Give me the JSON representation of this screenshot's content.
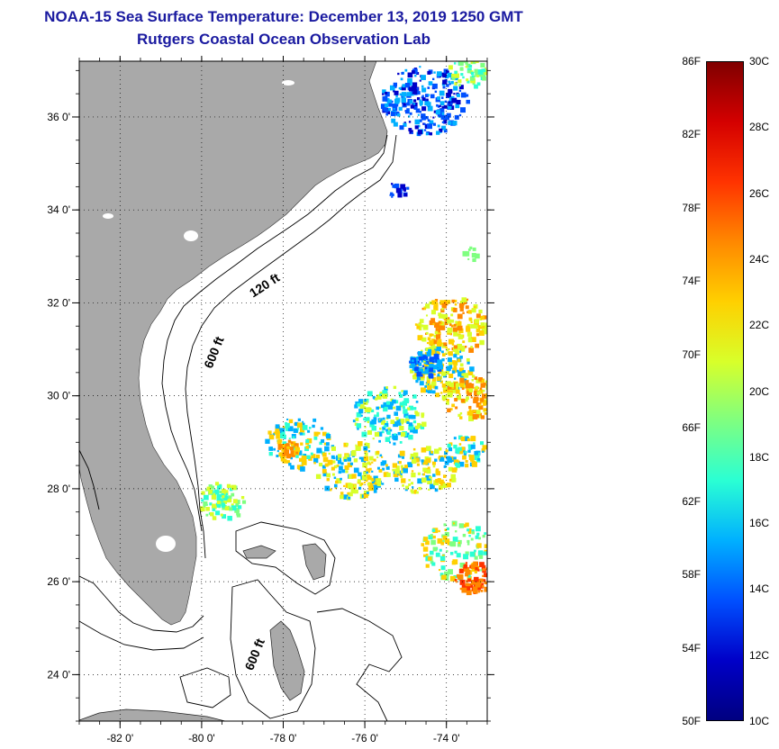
{
  "title": {
    "line1": "NOAA-15 Sea Surface Temperature:  December 13, 2019 1250 GMT",
    "line2": "Rutgers Coastal Ocean Observation Lab"
  },
  "map": {
    "lon_range": [
      -83.0,
      -73.0
    ],
    "lat_range": [
      23.0,
      37.2
    ],
    "lon_ticks": [
      {
        "value": -82,
        "label": "-82 0'"
      },
      {
        "value": -80,
        "label": "-80 0'"
      },
      {
        "value": -78,
        "label": "-78 0'"
      },
      {
        "value": -76,
        "label": "-76 0'"
      },
      {
        "value": -74,
        "label": "-74 0'"
      }
    ],
    "lat_ticks": [
      {
        "value": 24,
        "label": "24 0'"
      },
      {
        "value": 26,
        "label": "26 0'"
      },
      {
        "value": 28,
        "label": "28 0'"
      },
      {
        "value": 30,
        "label": "30 0'"
      },
      {
        "value": 32,
        "label": "32 0'"
      },
      {
        "value": 34,
        "label": "34 0'"
      },
      {
        "value": 36,
        "label": "36 0'"
      }
    ],
    "contour_labels": [
      {
        "text": "120 ft",
        "lon": -78.4,
        "lat": 32.3
      },
      {
        "text": "600 ft",
        "lon": -79.6,
        "lat": 30.9
      },
      {
        "text": "600 ft",
        "lon": -78.6,
        "lat": 24.4
      }
    ],
    "colors": {
      "land": "#a9a9a9",
      "grid": "#000000"
    }
  },
  "colorbar": {
    "fahrenheit": [
      "86F",
      "82F",
      "78F",
      "74F",
      "70F",
      "66F",
      "62F",
      "58F",
      "54F",
      "50F"
    ],
    "celsius": [
      "30C",
      "28C",
      "26C",
      "24C",
      "22C",
      "20C",
      "18C",
      "16C",
      "14C",
      "12C",
      "10C"
    ],
    "colors": [
      "#800000",
      "#d40000",
      "#ff3300",
      "#ff8800",
      "#ffd000",
      "#d8ff2a",
      "#7fff80",
      "#2affd4",
      "#00b0ff",
      "#0050ff",
      "#0000c8",
      "#000080"
    ]
  }
}
